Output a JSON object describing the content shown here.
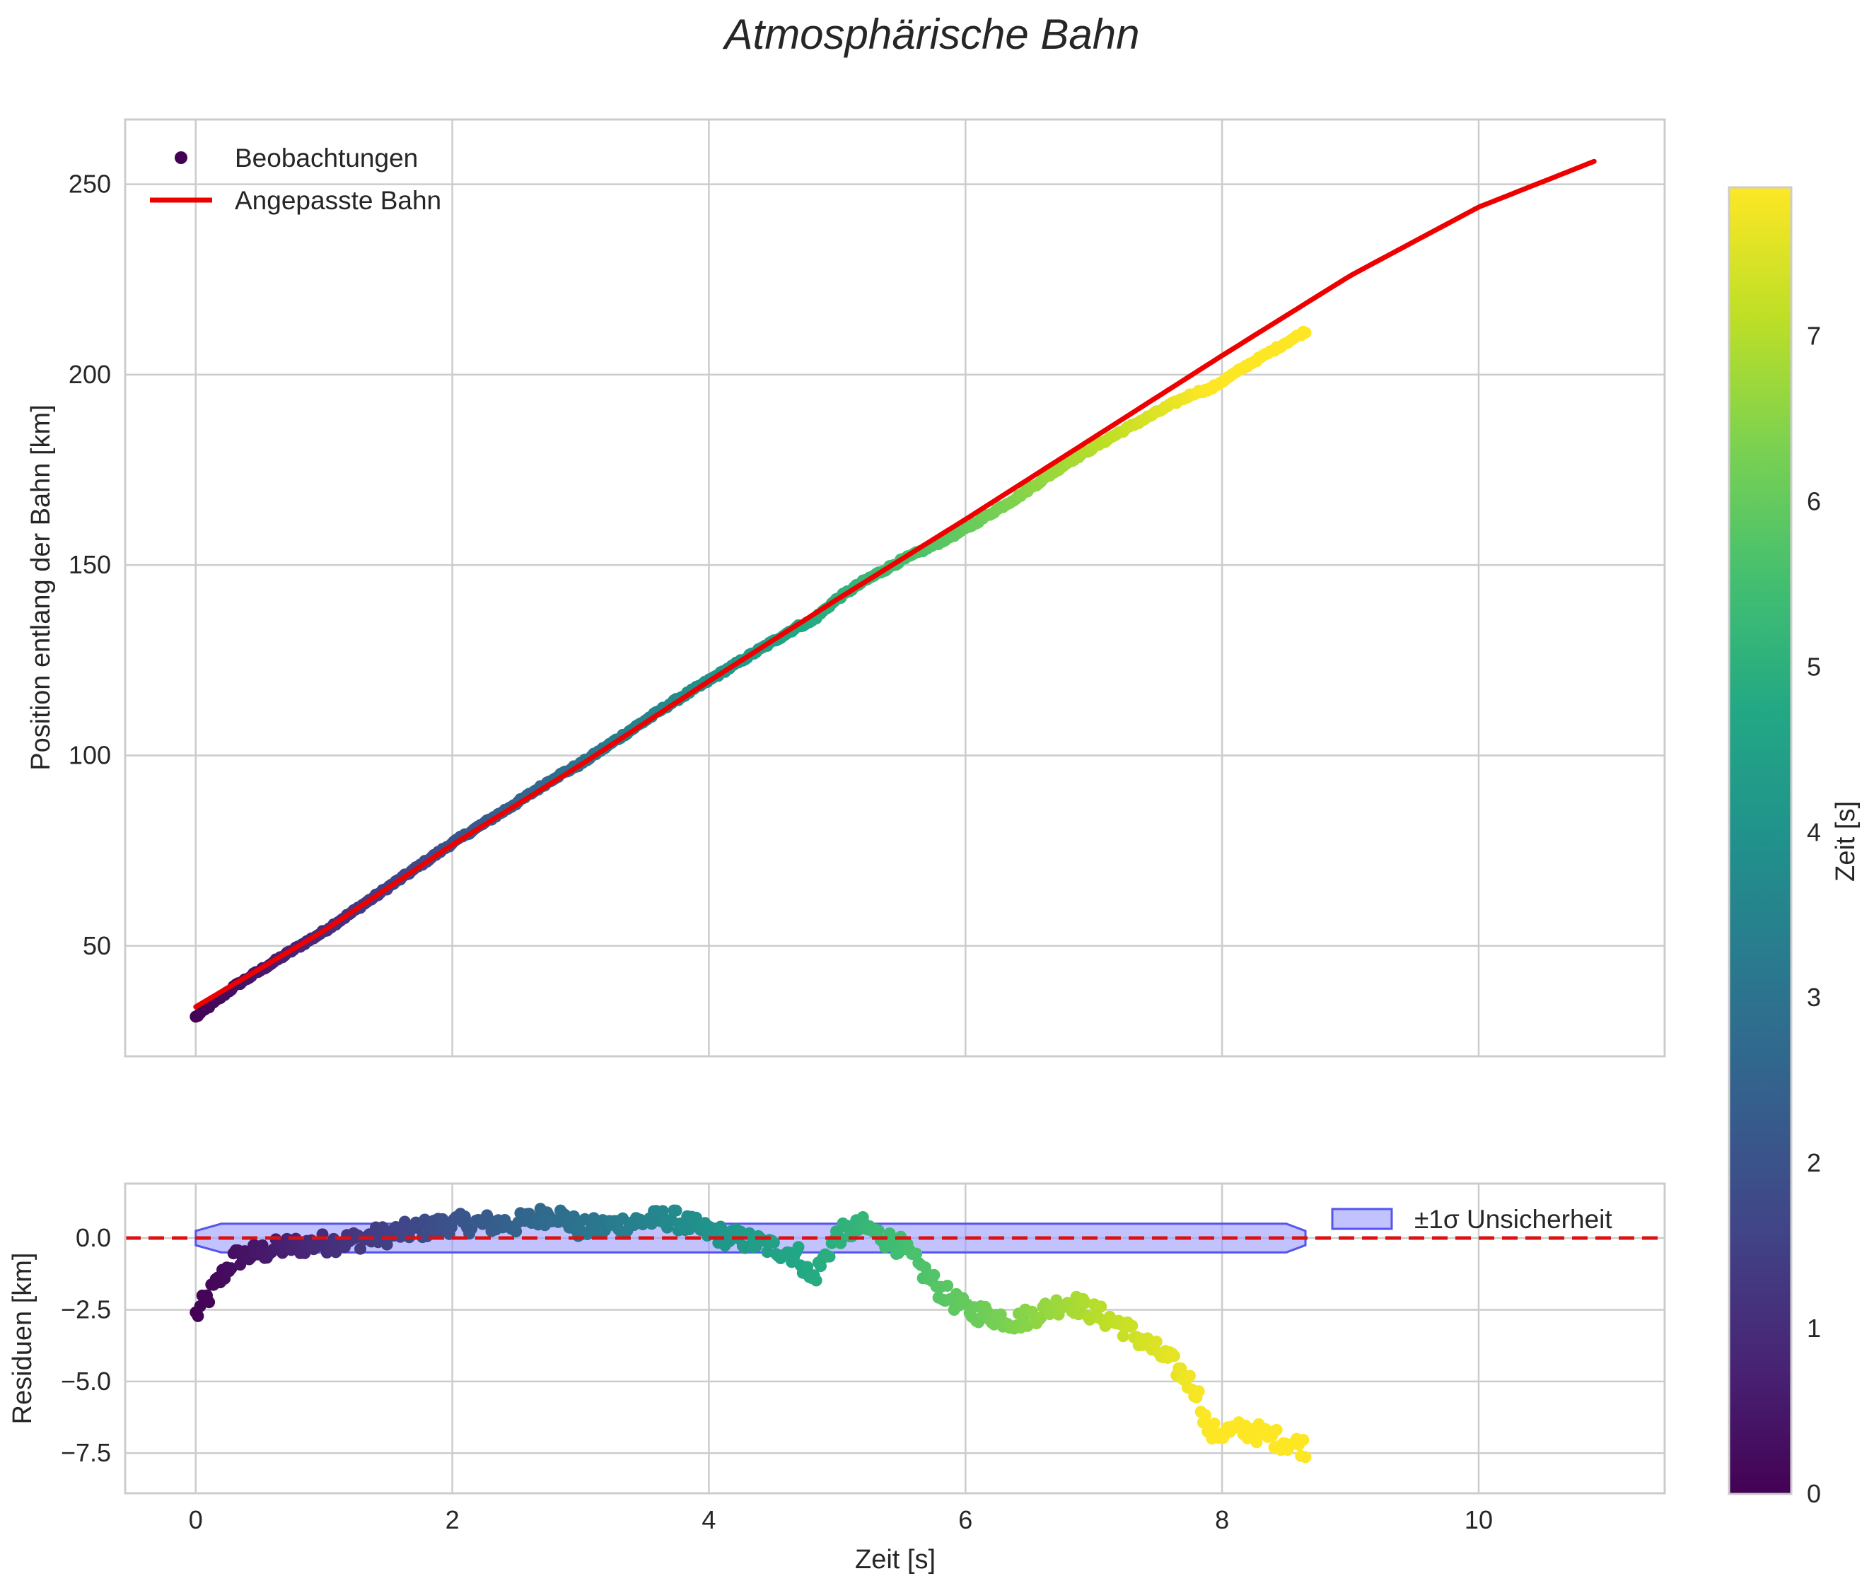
{
  "title": "Atmosphärische Bahn",
  "colors": {
    "fit_line": "#ee0000",
    "zero_line": "#dd1111",
    "band_fill": "#9999ff",
    "band_edge": "#5555ee",
    "grid": "#cccccc",
    "text": "#262626"
  },
  "colormap": "viridis",
  "chart_data": [
    {
      "id": "main",
      "type": "scatter",
      "xlabel": "",
      "ylabel": "Position entlang der Bahn [km]",
      "xlim": [
        -0.55,
        11.45
      ],
      "ylim": [
        21,
        267
      ],
      "xticks": [
        0,
        2,
        4,
        6,
        8,
        10
      ],
      "yticks": [
        50,
        100,
        150,
        200,
        250
      ],
      "ytick_labels": [
        "50",
        "100",
        "150",
        "200",
        "250"
      ],
      "grid": true,
      "legend": {
        "position": "top-left",
        "entries": [
          "Beobachtungen",
          "Angepasste Bahn"
        ]
      },
      "series": [
        {
          "name": "Beobachtungen",
          "kind": "scatter-colored-by-time",
          "x_range": [
            0,
            8.65
          ],
          "n_points": 500,
          "note": "x = Zeit [s], y = Position [km] = fit(x) + residual(x); color = Zeit",
          "residual_anchor_x": [
            0.0,
            0.3,
            0.7,
            1.2,
            1.6,
            2.0,
            2.5,
            2.8,
            3.0,
            3.5,
            3.7,
            4.0,
            4.4,
            4.7,
            4.8,
            5.0,
            5.2,
            5.5,
            5.8,
            6.0,
            6.4,
            6.8,
            7.2,
            7.6,
            7.8,
            7.9,
            8.2,
            8.65
          ],
          "residual_anchor_y": [
            -2.7,
            -0.7,
            -0.3,
            -0.1,
            0.2,
            0.5,
            0.5,
            0.9,
            0.3,
            0.6,
            0.7,
            0.2,
            -0.2,
            -0.6,
            -1.5,
            0.1,
            0.4,
            -0.3,
            -1.8,
            -2.5,
            -2.9,
            -2.2,
            -3.0,
            -4.3,
            -5.3,
            -6.8,
            -6.7,
            -7.3
          ]
        },
        {
          "name": "Angepasste Bahn",
          "kind": "line",
          "x": [
            0,
            1,
            2,
            3,
            4,
            5,
            6,
            7,
            8,
            9,
            10,
            10.9
          ],
          "y": [
            34,
            54,
            76.5,
            97.5,
            119.5,
            141,
            162,
            183.5,
            205,
            226,
            244,
            256
          ]
        }
      ]
    },
    {
      "id": "residuals",
      "type": "scatter",
      "xlabel": "Zeit [s]",
      "ylabel": "Residuen [km]",
      "xlim": [
        -0.55,
        11.45
      ],
      "ylim": [
        -8.9,
        1.9
      ],
      "xticks": [
        0,
        2,
        4,
        6,
        8,
        10
      ],
      "xtick_labels": [
        "0",
        "2",
        "4",
        "6",
        "8",
        "10"
      ],
      "yticks": [
        0.0,
        -2.5,
        -5.0,
        -7.5
      ],
      "ytick_labels": [
        "0.0",
        "−2.5",
        "−5.0",
        "−7.5"
      ],
      "grid": true,
      "legend": {
        "position": "top-right",
        "entries": [
          "±1σ Unsicherheit"
        ]
      },
      "reference_line": {
        "y": 0,
        "style": "dashed"
      },
      "band": {
        "name": "±1σ Unsicherheit",
        "x": [
          0,
          0.2,
          8.5,
          8.65
        ],
        "half_width": [
          0.25,
          0.5,
          0.5,
          0.25
        ]
      }
    }
  ],
  "colorbar": {
    "label": "Zeit [s]",
    "range": [
      0,
      7.9
    ],
    "ticks": [
      0,
      1,
      2,
      3,
      4,
      5,
      6,
      7
    ],
    "tick_labels": [
      "0",
      "1",
      "2",
      "3",
      "4",
      "5",
      "6",
      "7"
    ]
  }
}
